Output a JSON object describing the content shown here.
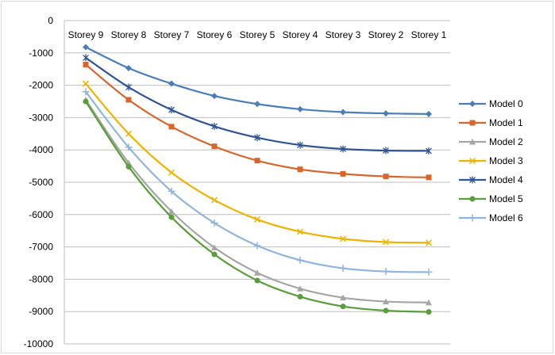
{
  "chart_data": {
    "type": "line",
    "title": "",
    "xlabel": "",
    "ylabel": "",
    "categories": [
      "Storey 9",
      "Storey 8",
      "Storey 7",
      "Storey 6",
      "Storey 5",
      "Storey 4",
      "Storey 3",
      "Storey 2",
      "Storey 1"
    ],
    "ylim": [
      -10000,
      0
    ],
    "yticks": [
      0,
      -1000,
      -2000,
      -3000,
      -4000,
      -5000,
      -6000,
      -7000,
      -8000,
      -9000,
      -10000
    ],
    "grid": "horizontal",
    "legend_position": "right",
    "series": [
      {
        "name": "Model 0",
        "color": "#4a7ebb",
        "marker": "diamond",
        "values": [
          -820,
          -1470,
          -1950,
          -2330,
          -2580,
          -2740,
          -2830,
          -2870,
          -2890
        ]
      },
      {
        "name": "Model 1",
        "color": "#d9652a",
        "marker": "square",
        "values": [
          -1360,
          -2450,
          -3280,
          -3890,
          -4330,
          -4600,
          -4740,
          -4820,
          -4850
        ]
      },
      {
        "name": "Model 2",
        "color": "#a5a5a5",
        "marker": "triangle",
        "values": [
          -2450,
          -4400,
          -5900,
          -7020,
          -7800,
          -8290,
          -8570,
          -8690,
          -8720
        ]
      },
      {
        "name": "Model 3",
        "color": "#f2b200",
        "marker": "x",
        "values": [
          -1950,
          -3500,
          -4700,
          -5550,
          -6150,
          -6530,
          -6750,
          -6850,
          -6870
        ]
      },
      {
        "name": "Model 4",
        "color": "#2f5597",
        "marker": "asterisk",
        "values": [
          -1150,
          -2060,
          -2760,
          -3270,
          -3620,
          -3850,
          -3970,
          -4020,
          -4030
        ]
      },
      {
        "name": "Model 5",
        "color": "#5a9e3a",
        "marker": "circle",
        "values": [
          -2500,
          -4520,
          -6080,
          -7230,
          -8040,
          -8540,
          -8840,
          -8970,
          -9010
        ]
      },
      {
        "name": "Model 6",
        "color": "#8fb4e0",
        "marker": "plus",
        "values": [
          -2200,
          -3920,
          -5280,
          -6260,
          -6960,
          -7410,
          -7660,
          -7760,
          -7780
        ]
      }
    ]
  }
}
